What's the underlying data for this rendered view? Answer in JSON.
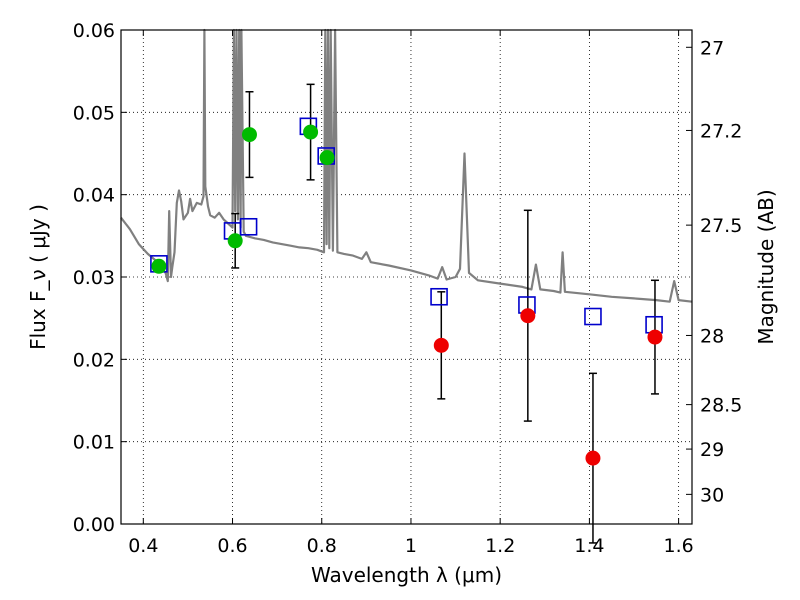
{
  "chart_data": {
    "type": "scatter",
    "xlabel": "Wavelength  λ (μm)",
    "ylabel": "Flux  F_ν  ( μJy )",
    "ylabel_right": "Magnitude (AB)",
    "xlim": [
      0.35,
      1.63
    ],
    "ylim": [
      0.0,
      0.06
    ],
    "grid": true,
    "x_ticks": [
      {
        "value": 0.4,
        "label": "0.4"
      },
      {
        "value": 0.6,
        "label": "0.6"
      },
      {
        "value": 0.8,
        "label": "0.8"
      },
      {
        "value": 1.0,
        "label": "1"
      },
      {
        "value": 1.2,
        "label": "1.2"
      },
      {
        "value": 1.4,
        "label": "1.4"
      },
      {
        "value": 1.6,
        "label": "1.6"
      }
    ],
    "y_ticks": [
      {
        "value": 0.0,
        "label": "0.00"
      },
      {
        "value": 0.01,
        "label": "0.01"
      },
      {
        "value": 0.02,
        "label": "0.02"
      },
      {
        "value": 0.03,
        "label": "0.03"
      },
      {
        "value": 0.04,
        "label": "0.04"
      },
      {
        "value": 0.05,
        "label": "0.05"
      },
      {
        "value": 0.06,
        "label": "0.06"
      }
    ],
    "right_ticks": [
      {
        "flux": 0.0579,
        "label": "27"
      },
      {
        "flux": 0.0478,
        "label": "27.2"
      },
      {
        "flux": 0.0363,
        "label": "27.5"
      },
      {
        "flux": 0.0229,
        "label": "28"
      },
      {
        "flux": 0.0145,
        "label": "28.5"
      },
      {
        "flux": 0.0091,
        "label": "29"
      },
      {
        "flux": 0.0036,
        "label": "30"
      }
    ],
    "colors": {
      "spectrum": "#808080",
      "model": "#0000cc",
      "green": "#00bb00",
      "red": "#ee0000",
      "errorbar": "#000000"
    },
    "series": [
      {
        "role": "spectrum",
        "points": [
          [
            0.35,
            0.0372
          ],
          [
            0.37,
            0.0358
          ],
          [
            0.39,
            0.034
          ],
          [
            0.41,
            0.0328
          ],
          [
            0.43,
            0.0319
          ],
          [
            0.45,
            0.0305
          ],
          [
            0.455,
            0.0295
          ],
          [
            0.458,
            0.038
          ],
          [
            0.462,
            0.03
          ],
          [
            0.465,
            0.0312
          ],
          [
            0.47,
            0.033
          ],
          [
            0.475,
            0.039
          ],
          [
            0.48,
            0.0405
          ],
          [
            0.485,
            0.0392
          ],
          [
            0.49,
            0.037
          ],
          [
            0.5,
            0.0378
          ],
          [
            0.505,
            0.0395
          ],
          [
            0.51,
            0.038
          ],
          [
            0.52,
            0.039
          ],
          [
            0.53,
            0.0388
          ],
          [
            0.535,
            0.0398
          ],
          [
            0.537,
            0.06
          ],
          [
            0.539,
            0.041
          ],
          [
            0.545,
            0.0386
          ],
          [
            0.55,
            0.0375
          ],
          [
            0.56,
            0.0372
          ],
          [
            0.57,
            0.0378
          ],
          [
            0.58,
            0.037
          ],
          [
            0.59,
            0.0365
          ],
          [
            0.6,
            0.036
          ],
          [
            0.603,
            0.06
          ],
          [
            0.606,
            0.038
          ],
          [
            0.609,
            0.06
          ],
          [
            0.612,
            0.037
          ],
          [
            0.615,
            0.06
          ],
          [
            0.618,
            0.036
          ],
          [
            0.62,
            0.06
          ],
          [
            0.625,
            0.0355
          ],
          [
            0.63,
            0.035
          ],
          [
            0.65,
            0.0347
          ],
          [
            0.67,
            0.0345
          ],
          [
            0.69,
            0.0342
          ],
          [
            0.71,
            0.034
          ],
          [
            0.73,
            0.0338
          ],
          [
            0.75,
            0.0336
          ],
          [
            0.77,
            0.0335
          ],
          [
            0.79,
            0.0333
          ],
          [
            0.805,
            0.033
          ],
          [
            0.808,
            0.06
          ],
          [
            0.811,
            0.034
          ],
          [
            0.814,
            0.06
          ],
          [
            0.817,
            0.0335
          ],
          [
            0.82,
            0.06
          ],
          [
            0.825,
            0.0332
          ],
          [
            0.83,
            0.06
          ],
          [
            0.835,
            0.033
          ],
          [
            0.85,
            0.0328
          ],
          [
            0.87,
            0.0326
          ],
          [
            0.89,
            0.0322
          ],
          [
            0.9,
            0.033
          ],
          [
            0.91,
            0.0318
          ],
          [
            0.95,
            0.0314
          ],
          [
            1.0,
            0.0308
          ],
          [
            1.04,
            0.0302
          ],
          [
            1.06,
            0.0298
          ],
          [
            1.07,
            0.0312
          ],
          [
            1.08,
            0.0297
          ],
          [
            1.1,
            0.03
          ],
          [
            1.11,
            0.031
          ],
          [
            1.12,
            0.045
          ],
          [
            1.13,
            0.0305
          ],
          [
            1.15,
            0.0296
          ],
          [
            1.2,
            0.0292
          ],
          [
            1.25,
            0.0288
          ],
          [
            1.27,
            0.0285
          ],
          [
            1.28,
            0.0315
          ],
          [
            1.29,
            0.0285
          ],
          [
            1.32,
            0.0283
          ],
          [
            1.335,
            0.0281
          ],
          [
            1.34,
            0.033
          ],
          [
            1.345,
            0.0282
          ],
          [
            1.4,
            0.0279
          ],
          [
            1.45,
            0.0276
          ],
          [
            1.5,
            0.0274
          ],
          [
            1.55,
            0.0272
          ],
          [
            1.58,
            0.027
          ],
          [
            1.59,
            0.0295
          ],
          [
            1.6,
            0.0272
          ],
          [
            1.63,
            0.027
          ]
        ]
      },
      {
        "role": "model",
        "marker": "square",
        "points": [
          [
            0.435,
            0.0316
          ],
          [
            0.6,
            0.0356
          ],
          [
            0.636,
            0.0361
          ],
          [
            0.77,
            0.0483
          ],
          [
            0.81,
            0.0447
          ],
          [
            1.063,
            0.0276
          ],
          [
            1.26,
            0.0266
          ],
          [
            1.408,
            0.0252
          ],
          [
            1.545,
            0.0242
          ]
        ]
      },
      {
        "role": "green",
        "marker": "circle",
        "points": [
          {
            "x": 0.435,
            "y": 0.0313,
            "err": null
          },
          {
            "x": 0.606,
            "y": 0.0344,
            "err": 0.0033
          },
          {
            "x": 0.638,
            "y": 0.0473,
            "err": 0.0052
          },
          {
            "x": 0.775,
            "y": 0.0476,
            "err": 0.0058
          },
          {
            "x": 0.812,
            "y": 0.0445,
            "err": null
          }
        ]
      },
      {
        "role": "red",
        "marker": "circle",
        "points": [
          {
            "x": 1.068,
            "y": 0.0217,
            "err": 0.0065
          },
          {
            "x": 1.262,
            "y": 0.0253,
            "err": 0.0128
          },
          {
            "x": 1.408,
            "y": 0.008,
            "err": 0.0103
          },
          {
            "x": 1.547,
            "y": 0.0227,
            "err": 0.0069
          }
        ]
      }
    ]
  }
}
